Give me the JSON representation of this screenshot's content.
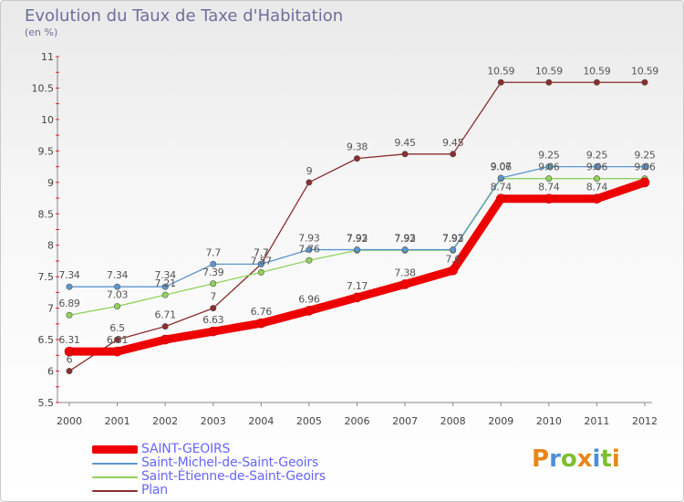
{
  "title": "Evolution du Taux de Taxe d'Habitation",
  "unit": "(en %)",
  "logo": {
    "text": "Proxiti",
    "letter_colors": [
      "#e8861a",
      "#4a90d9",
      "#7dbf2e",
      "#e8861a",
      "#4a90d9",
      "#7dbf2e",
      "#e8861a"
    ]
  },
  "chart_data": {
    "type": "line",
    "title": "Evolution du Taux de Taxe d'Habitation",
    "ylabel": "(en %)",
    "x": [
      "2000",
      "2001",
      "2002",
      "2003",
      "2004",
      "2005",
      "2006",
      "2007",
      "2008",
      "2009",
      "2010",
      "2011",
      "2012"
    ],
    "ylim": [
      5.5,
      11
    ],
    "yticks": [
      "5.5",
      "6",
      "6.5",
      "7",
      "7.5",
      "8",
      "8.5",
      "9",
      "9.5",
      "10",
      "10.5",
      "11"
    ],
    "grid": false,
    "legend_position": "bottom-left",
    "series": [
      {
        "name": "SAINT-GEOIRS",
        "color": "#ee0000",
        "values": [
          6.31,
          6.31,
          6.5,
          6.63,
          6.76,
          6.96,
          7.17,
          7.38,
          7.6,
          8.74,
          8.74,
          8.74,
          9.0
        ],
        "labels": [
          "6.31",
          "6.31",
          "",
          "6.63",
          "6.76",
          "6.96",
          "7.17",
          "7.38",
          "7.6",
          "8.74",
          "8.74",
          "8.74",
          ""
        ]
      },
      {
        "name": "Saint-Michel-de-Saint-Geoirs",
        "color": "#5b96cf",
        "values": [
          7.34,
          7.34,
          7.34,
          7.7,
          7.7,
          7.93,
          7.93,
          7.93,
          7.93,
          9.07,
          9.25,
          9.25,
          9.25
        ],
        "labels": [
          "7.34",
          "7.34",
          "7.34",
          "7.7",
          "7.7",
          "7.93",
          "7.93",
          "7.93",
          "7.93",
          "9.07",
          "9.25",
          "9.25",
          "9.25"
        ]
      },
      {
        "name": "Saint-Étienne-de-Saint-Geoirs",
        "color": "#8fd35a",
        "values": [
          6.89,
          7.03,
          7.21,
          7.39,
          7.57,
          7.76,
          7.92,
          7.92,
          7.92,
          9.06,
          9.06,
          9.06,
          9.06
        ],
        "labels": [
          "6.89",
          "7.03",
          "7.21",
          "7.39",
          "7.57",
          "7.76",
          "7.92",
          "7.92",
          "7.92",
          "9.06",
          "9.06",
          "9.06",
          "9.06"
        ]
      },
      {
        "name": "Plan",
        "color": "#8b2d2d",
        "values": [
          6.0,
          6.5,
          6.71,
          7.0,
          7.7,
          9.0,
          9.38,
          9.45,
          9.45,
          10.59,
          10.59,
          10.59,
          10.59
        ],
        "labels": [
          "6",
          "6.5",
          "6.71",
          "7",
          "7.7",
          "9",
          "9.38",
          "9.45",
          "9.45",
          "10.59",
          "10.59",
          "10.59",
          "10.59"
        ]
      }
    ]
  }
}
